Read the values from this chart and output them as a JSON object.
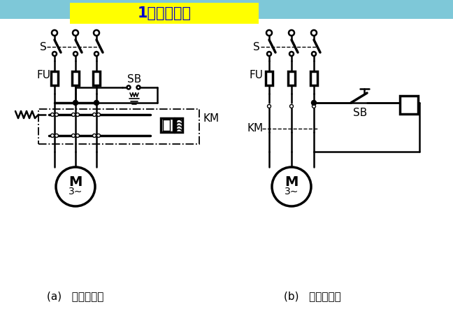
{
  "title": "1、点动控制",
  "title_bg": "#FFFF00",
  "title_color": "#0000CC",
  "bg_color": "#FFFFFF",
  "top_strip_color": "#7EC8D8",
  "label_a": "(a)   接线示意图",
  "label_b": "(b)   电气原理图",
  "line_color": "#000000",
  "lw": 1.8,
  "lw2": 2.5
}
